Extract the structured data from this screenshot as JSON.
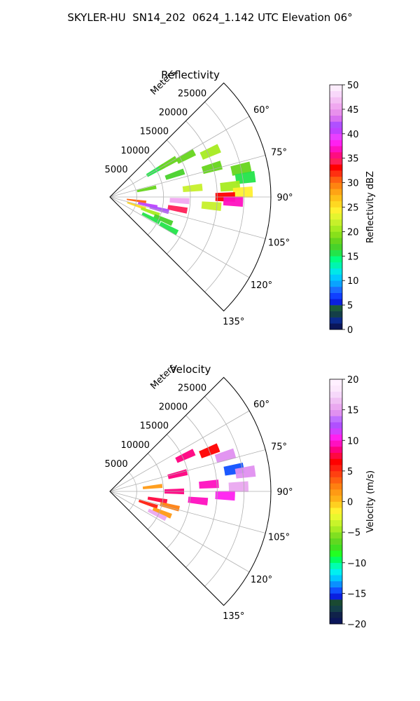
{
  "figure": {
    "title": "SKYLER-HU  SN14_202  0624_1.142 UTC Elevation 06°"
  },
  "chart_data": [
    {
      "type": "polar-sector",
      "title": "Reflectivity",
      "range_label": "Meters",
      "theta_range_deg": [
        45,
        135
      ],
      "theta_ticks": [
        "60°",
        "75°",
        "90°",
        "105°",
        "120°",
        "135°"
      ],
      "theta_tick_values": [
        60,
        75,
        90,
        105,
        120,
        135
      ],
      "r_max": 30000,
      "r_ticks": [
        "5000",
        "10000",
        "15000",
        "20000",
        "25000"
      ],
      "r_tick_values": [
        5000,
        10000,
        15000,
        20000,
        25000
      ],
      "grid": true,
      "colorbar": {
        "label": "Reflectivity dBZ",
        "range": [
          0,
          50
        ],
        "ticks": [
          "0",
          "5",
          "10",
          "15",
          "20",
          "25",
          "30",
          "35",
          "40",
          "45",
          "50"
        ],
        "tick_values": [
          0,
          5,
          10,
          15,
          20,
          25,
          30,
          35,
          40,
          45,
          50
        ],
        "colors": [
          "#0b1659",
          "#0b2a8c",
          "#143f48",
          "#1c5a3c",
          "#0a1fe0",
          "#1040ff",
          "#1a6dff",
          "#0aa2ff",
          "#00c8ff",
          "#00e8e8",
          "#00f5b0",
          "#00ff80",
          "#23e44a",
          "#48d22a",
          "#66d51c",
          "#88e01a",
          "#a6eb20",
          "#c6f02a",
          "#e4f52f",
          "#fff030",
          "#ffd821",
          "#ffc018",
          "#ffa414",
          "#ff8410",
          "#ff6010",
          "#ff3010",
          "#ff0000",
          "#ff2058",
          "#ff0d80",
          "#ff10c0",
          "#ff20f0",
          "#e840ff",
          "#c040ff",
          "#b050ff",
          "#d870f0",
          "#e890ec",
          "#f0a8f0",
          "#f4c0f4",
          "#f8d8fa",
          "#fcecfc"
        ]
      },
      "echo_cells": [
        {
          "theta": 60,
          "r": 9800,
          "value": 16
        },
        {
          "theta": 60,
          "r": 12500,
          "value": 18
        },
        {
          "theta": 62,
          "r": 16000,
          "value": 18
        },
        {
          "theta": 66,
          "r": 20500,
          "value": 20
        },
        {
          "theta": 71,
          "r": 12800,
          "value": 17
        },
        {
          "theta": 74,
          "r": 19800,
          "value": 18
        },
        {
          "theta": 78,
          "r": 25000,
          "value": 18
        },
        {
          "theta": 78,
          "r": 7000,
          "value": 18
        },
        {
          "theta": 82,
          "r": 25500,
          "value": 16
        },
        {
          "theta": 84,
          "r": 15500,
          "value": 22
        },
        {
          "theta": 85,
          "r": 22500,
          "value": 20
        },
        {
          "theta": 88,
          "r": 24800,
          "value": 24
        },
        {
          "theta": 90,
          "r": 21500,
          "value": 33
        },
        {
          "theta": 92,
          "r": 23000,
          "value": 37
        },
        {
          "theta": 93,
          "r": 13000,
          "value": 45
        },
        {
          "theta": 95,
          "r": 19000,
          "value": 22
        },
        {
          "theta": 98,
          "r": 5000,
          "value": 30
        },
        {
          "theta": 100,
          "r": 12800,
          "value": 34
        },
        {
          "theta": 102,
          "r": 7200,
          "value": 40
        },
        {
          "theta": 104,
          "r": 9500,
          "value": 42
        },
        {
          "theta": 108,
          "r": 5200,
          "value": 26
        },
        {
          "theta": 110,
          "r": 8000,
          "value": 20
        },
        {
          "theta": 113,
          "r": 10800,
          "value": 17
        },
        {
          "theta": 117,
          "r": 8600,
          "value": 16
        },
        {
          "theta": 118,
          "r": 12400,
          "value": 15
        }
      ]
    },
    {
      "type": "polar-sector",
      "title": "Velocity",
      "range_label": "Meters",
      "theta_range_deg": [
        45,
        135
      ],
      "theta_ticks": [
        "60°",
        "75°",
        "90°",
        "105°",
        "120°",
        "135°"
      ],
      "theta_tick_values": [
        60,
        75,
        90,
        105,
        120,
        135
      ],
      "r_max": 30000,
      "r_ticks": [
        "5000",
        "10000",
        "15000",
        "20000",
        "25000"
      ],
      "r_tick_values": [
        5000,
        10000,
        15000,
        20000,
        25000
      ],
      "grid": true,
      "colorbar": {
        "label": "Velocity (m/s)",
        "range": [
          -20,
          20
        ],
        "ticks": [
          "−20",
          "−15",
          "−10",
          "−5",
          "0",
          "5",
          "10",
          "15",
          "20"
        ],
        "tick_values": [
          -20,
          -15,
          -10,
          -5,
          0,
          5,
          10,
          15,
          20
        ],
        "colors": [
          "#0b1659",
          "#10224a",
          "#143f48",
          "#1a4a32",
          "#0a1fe0",
          "#1050ff",
          "#0a90ff",
          "#00c8ff",
          "#00f0f0",
          "#00ffb0",
          "#00ff60",
          "#22ff22",
          "#40e020",
          "#60d820",
          "#80e020",
          "#a8ec22",
          "#c8f42a",
          "#e8f82e",
          "#fff030",
          "#ffd020",
          "#ffb018",
          "#ff9a14",
          "#ff8010",
          "#ff6010",
          "#ff4010",
          "#ff2010",
          "#ff0000",
          "#ff0840",
          "#ff0080",
          "#ff10c0",
          "#ff20f0",
          "#d040ff",
          "#b050ff",
          "#c070ff",
          "#e090f0",
          "#eaa8f0",
          "#f0c0f4",
          "#f6d8fa",
          "#fce8fc",
          "#fff0ff"
        ]
      },
      "echo_cells": [
        {
          "theta": 65,
          "r": 15500,
          "value": 8
        },
        {
          "theta": 68,
          "r": 20000,
          "value": 6
        },
        {
          "theta": 73,
          "r": 22500,
          "value": 14
        },
        {
          "theta": 76,
          "r": 13000,
          "value": 8
        },
        {
          "theta": 80,
          "r": 23500,
          "value": -15
        },
        {
          "theta": 82,
          "r": 25500,
          "value": 14
        },
        {
          "theta": 84,
          "r": 8000,
          "value": 1
        },
        {
          "theta": 86,
          "r": 18500,
          "value": 9
        },
        {
          "theta": 88,
          "r": 24000,
          "value": 15
        },
        {
          "theta": 90,
          "r": 12000,
          "value": 8
        },
        {
          "theta": 92,
          "r": 21500,
          "value": 10
        },
        {
          "theta": 96,
          "r": 16500,
          "value": 9
        },
        {
          "theta": 100,
          "r": 9000,
          "value": 7
        },
        {
          "theta": 104,
          "r": 11500,
          "value": 2
        },
        {
          "theta": 108,
          "r": 7500,
          "value": 5
        },
        {
          "theta": 112,
          "r": 10500,
          "value": 1
        },
        {
          "theta": 116,
          "r": 9800,
          "value": 15
        }
      ]
    }
  ]
}
